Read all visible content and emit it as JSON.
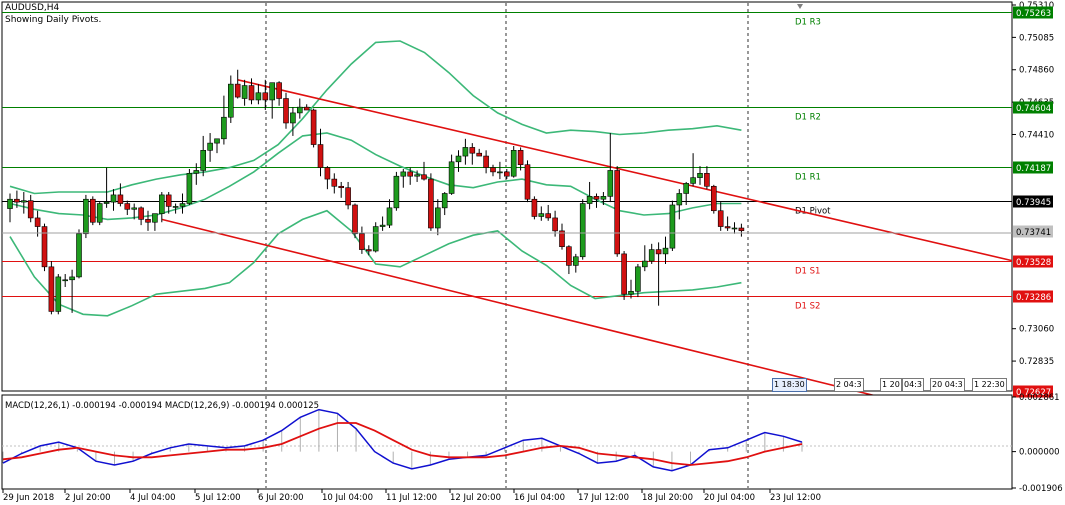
{
  "chart": {
    "symbol_timeframe": "AUDUSD,H4",
    "indicator_note": "Showing Daily Pivots.",
    "macd_label": "MACD(12,26,1) -0.000194 -0.000194 MACD(12,26,9) -0.000194 0.000125",
    "current_price": "0.73741",
    "colors": {
      "bull": "#1e9b1e",
      "bear": "#d01010",
      "bands": "#3cb878",
      "trend": "#e01010",
      "resistance": "#008000",
      "support": "#e01010",
      "macd_line": "#1010d0",
      "signal_line": "#e01010"
    }
  },
  "pivots": [
    {
      "label": "D1 R3",
      "price": "0.75263",
      "kind": "resistance"
    },
    {
      "label": "D1 R2",
      "price": "0.74604",
      "kind": "resistance"
    },
    {
      "label": "D1 R1",
      "price": "0.74187",
      "kind": "resistance"
    },
    {
      "label": "D1 Pivot",
      "price": "0.73945",
      "kind": "pivot"
    },
    {
      "label": "D1 S1",
      "price": "0.73528",
      "kind": "support"
    },
    {
      "label": "D1 S2",
      "price": "0.73286",
      "kind": "support"
    },
    {
      "label": "",
      "price": "0.72627",
      "kind": "support"
    }
  ],
  "price_axis": [
    "0.75310",
    "0.75085",
    "0.74860",
    "0.74635",
    "0.74410",
    "0.73060",
    "0.72835"
  ],
  "macd_axis": [
    "0.002861",
    "0.000000",
    "-0.001906"
  ],
  "time_axis": [
    "29 Jun 2018",
    "2 Jul 20:00",
    "4 Jul 04:00",
    "5 Jul 12:00",
    "6 Jul 20:00",
    "10 Jul 04:00",
    "11 Jul 12:00",
    "12 Jul 20:00",
    "16 Jul 04:00",
    "17 Jul 12:00",
    "18 Jul 20:00",
    "20 Jul 04:00",
    "23 Jul 12:00"
  ],
  "scroll_labels": [
    "1 18:30",
    "2 04:3",
    "1 20",
    "04:3",
    "20",
    "20 04:3",
    "1 22:30"
  ],
  "chart_data": {
    "type": "candlestick",
    "ylim": [
      0.72627,
      0.7531
    ],
    "candles": [
      [
        0.73895,
        0.74,
        0.738,
        0.7396
      ],
      [
        0.7396,
        0.7402,
        0.739,
        0.7394
      ],
      [
        0.7394,
        0.7401,
        0.7386,
        0.7395
      ],
      [
        0.7395,
        0.7399,
        0.738,
        0.7383
      ],
      [
        0.7383,
        0.7388,
        0.737,
        0.7377
      ],
      [
        0.7377,
        0.7379,
        0.7346,
        0.7349
      ],
      [
        0.7349,
        0.7353,
        0.7316,
        0.7318
      ],
      [
        0.7318,
        0.7344,
        0.7316,
        0.7342
      ],
      [
        0.734,
        0.7344,
        0.7335,
        0.734
      ],
      [
        0.734,
        0.7347,
        0.7317,
        0.7342
      ],
      [
        0.7342,
        0.7375,
        0.7341,
        0.7372
      ],
      [
        0.7372,
        0.7399,
        0.7369,
        0.7396
      ],
      [
        0.7396,
        0.7398,
        0.7378,
        0.738
      ],
      [
        0.738,
        0.7394,
        0.7378,
        0.7393
      ],
      [
        0.7393,
        0.7418,
        0.739,
        0.7394
      ],
      [
        0.7394,
        0.7403,
        0.7388,
        0.7399
      ],
      [
        0.7399,
        0.7407,
        0.7391,
        0.7393
      ],
      [
        0.7393,
        0.7395,
        0.7385,
        0.7389
      ],
      [
        0.7389,
        0.7393,
        0.7382,
        0.739
      ],
      [
        0.739,
        0.7391,
        0.7378,
        0.7382
      ],
      [
        0.7382,
        0.7388,
        0.7374,
        0.738
      ],
      [
        0.738,
        0.7385,
        0.7374,
        0.7386
      ],
      [
        0.7386,
        0.7401,
        0.738,
        0.7399
      ],
      [
        0.7399,
        0.7401,
        0.7386,
        0.7391
      ],
      [
        0.7391,
        0.7393,
        0.7386,
        0.7391
      ],
      [
        0.7391,
        0.74,
        0.7386,
        0.7393
      ],
      [
        0.7393,
        0.7417,
        0.7392,
        0.7414
      ],
      [
        0.7414,
        0.7421,
        0.7406,
        0.7416
      ],
      [
        0.7416,
        0.744,
        0.7412,
        0.743
      ],
      [
        0.743,
        0.7442,
        0.7422,
        0.7435
      ],
      [
        0.7435,
        0.7438,
        0.7428,
        0.7438
      ],
      [
        0.7438,
        0.7468,
        0.7434,
        0.7453
      ],
      [
        0.7453,
        0.7482,
        0.7449,
        0.7476
      ],
      [
        0.7476,
        0.7486,
        0.7466,
        0.7467
      ],
      [
        0.7466,
        0.7479,
        0.7461,
        0.7475
      ],
      [
        0.7475,
        0.748,
        0.7462,
        0.7465
      ],
      [
        0.7465,
        0.7476,
        0.7462,
        0.747
      ],
      [
        0.747,
        0.7479,
        0.7458,
        0.7465
      ],
      [
        0.7465,
        0.7477,
        0.7452,
        0.7477
      ],
      [
        0.7477,
        0.7478,
        0.7461,
        0.7466
      ],
      [
        0.7466,
        0.747,
        0.7445,
        0.7449
      ],
      [
        0.7449,
        0.746,
        0.744,
        0.7456
      ],
      [
        0.7456,
        0.7466,
        0.7452,
        0.746
      ],
      [
        0.746,
        0.7462,
        0.7458,
        0.7458
      ],
      [
        0.7458,
        0.7459,
        0.7432,
        0.7434
      ],
      [
        0.7434,
        0.7445,
        0.7412,
        0.7418
      ],
      [
        0.7418,
        0.7419,
        0.7403,
        0.741
      ],
      [
        0.741,
        0.7414,
        0.74,
        0.7405
      ],
      [
        0.7405,
        0.7408,
        0.7397,
        0.7404
      ],
      [
        0.7404,
        0.7408,
        0.7389,
        0.7392
      ],
      [
        0.7392,
        0.7393,
        0.7369,
        0.7372
      ],
      [
        0.7372,
        0.7377,
        0.7358,
        0.7361
      ],
      [
        0.7361,
        0.7364,
        0.7357,
        0.736
      ],
      [
        0.736,
        0.738,
        0.7359,
        0.7377
      ],
      [
        0.7377,
        0.7384,
        0.7374,
        0.7378
      ],
      [
        0.7378,
        0.7396,
        0.7376,
        0.739
      ],
      [
        0.739,
        0.7415,
        0.7388,
        0.7412
      ],
      [
        0.7412,
        0.7417,
        0.7404,
        0.7415
      ],
      [
        0.7415,
        0.7418,
        0.7406,
        0.7412
      ],
      [
        0.7412,
        0.7416,
        0.7408,
        0.7413
      ],
      [
        0.7413,
        0.7422,
        0.7409,
        0.741
      ],
      [
        0.741,
        0.7414,
        0.7374,
        0.7376
      ],
      [
        0.7376,
        0.7396,
        0.7371,
        0.739
      ],
      [
        0.739,
        0.7401,
        0.7385,
        0.74
      ],
      [
        0.74,
        0.7427,
        0.7399,
        0.7422
      ],
      [
        0.7422,
        0.743,
        0.7415,
        0.7426
      ],
      [
        0.7426,
        0.7438,
        0.742,
        0.7432
      ],
      [
        0.7432,
        0.7435,
        0.742,
        0.7428
      ],
      [
        0.7428,
        0.7431,
        0.7426,
        0.7426
      ],
      [
        0.7426,
        0.743,
        0.7414,
        0.7418
      ],
      [
        0.7418,
        0.742,
        0.7412,
        0.7415
      ],
      [
        0.7415,
        0.7422,
        0.741,
        0.7415
      ],
      [
        0.7415,
        0.7417,
        0.741,
        0.7412
      ],
      [
        0.7412,
        0.7433,
        0.7411,
        0.743
      ],
      [
        0.743,
        0.7432,
        0.7416,
        0.742
      ],
      [
        0.742,
        0.7423,
        0.7394,
        0.7396
      ],
      [
        0.7396,
        0.7398,
        0.7382,
        0.7384
      ],
      [
        0.7384,
        0.7391,
        0.7381,
        0.7386
      ],
      [
        0.7386,
        0.7392,
        0.7381,
        0.7383
      ],
      [
        0.7383,
        0.7388,
        0.737,
        0.7374
      ],
      [
        0.7374,
        0.7379,
        0.7361,
        0.7363
      ],
      [
        0.7363,
        0.7364,
        0.7344,
        0.735
      ],
      [
        0.735,
        0.7358,
        0.7345,
        0.7356
      ],
      [
        0.7356,
        0.7396,
        0.7354,
        0.7393
      ],
      [
        0.7393,
        0.7408,
        0.7389,
        0.7398
      ],
      [
        0.7398,
        0.74,
        0.739,
        0.7396
      ],
      [
        0.7396,
        0.7401,
        0.7392,
        0.7398
      ],
      [
        0.7398,
        0.7442,
        0.7394,
        0.7416
      ],
      [
        0.7416,
        0.7419,
        0.7356,
        0.7358
      ],
      [
        0.7358,
        0.736,
        0.7326,
        0.733
      ],
      [
        0.733,
        0.734,
        0.7327,
        0.7332
      ],
      [
        0.7332,
        0.7351,
        0.7328,
        0.7349
      ],
      [
        0.7349,
        0.7364,
        0.7346,
        0.7353
      ],
      [
        0.7353,
        0.7365,
        0.7351,
        0.7361
      ],
      [
        0.7361,
        0.7366,
        0.7322,
        0.7358
      ],
      [
        0.7358,
        0.737,
        0.7351,
        0.7362
      ],
      [
        0.7362,
        0.7395,
        0.736,
        0.7392
      ],
      [
        0.7392,
        0.7403,
        0.7382,
        0.74
      ],
      [
        0.74,
        0.7408,
        0.7392,
        0.7407
      ],
      [
        0.7407,
        0.7428,
        0.7405,
        0.7411
      ],
      [
        0.7411,
        0.7419,
        0.7406,
        0.7414
      ],
      [
        0.7414,
        0.7419,
        0.7403,
        0.7405
      ],
      [
        0.7405,
        0.7406,
        0.7386,
        0.7388
      ],
      [
        0.7388,
        0.7394,
        0.7374,
        0.7377
      ],
      [
        0.7377,
        0.7384,
        0.7374,
        0.7376
      ],
      [
        0.7376,
        0.738,
        0.7372,
        0.7376
      ],
      [
        0.7376,
        0.7379,
        0.737,
        0.73741
      ]
    ],
    "bollinger": {
      "upper": [
        0.7405,
        0.74,
        0.7401,
        0.7401,
        0.7401,
        0.7406,
        0.741,
        0.7413,
        0.7415,
        0.7418,
        0.7423,
        0.7434,
        0.7452,
        0.7472,
        0.749,
        0.7505,
        0.7506,
        0.7498,
        0.7484,
        0.7468,
        0.7456,
        0.7448,
        0.7442,
        0.7444,
        0.7443,
        0.7441,
        0.7442,
        0.7444,
        0.7445,
        0.7447,
        0.7444
      ],
      "middle": [
        0.7393,
        0.7389,
        0.7386,
        0.7385,
        0.7382,
        0.7383,
        0.7385,
        0.739,
        0.7396,
        0.7405,
        0.7415,
        0.7428,
        0.744,
        0.7442,
        0.7437,
        0.7427,
        0.7419,
        0.7412,
        0.7406,
        0.7404,
        0.7408,
        0.741,
        0.7406,
        0.7405,
        0.7396,
        0.7388,
        0.7385,
        0.7386,
        0.739,
        0.7393,
        0.7393
      ],
      "lower": [
        0.737,
        0.7342,
        0.7323,
        0.7316,
        0.7315,
        0.7322,
        0.733,
        0.7332,
        0.7334,
        0.7338,
        0.7352,
        0.7372,
        0.7382,
        0.7388,
        0.7374,
        0.7351,
        0.7349,
        0.7357,
        0.7365,
        0.7371,
        0.7374,
        0.736,
        0.735,
        0.7336,
        0.7327,
        0.7329,
        0.7331,
        0.7332,
        0.7333,
        0.7335,
        0.7338
      ]
    },
    "trendlines": [
      {
        "from": [
          33,
          0.7479
        ],
        "to": [
          108,
          0.7395
        ]
      },
      {
        "from": [
          22,
          0.7382
        ],
        "to": [
          108,
          0.728
        ]
      }
    ],
    "macd": {
      "ylim": [
        -0.001906,
        0.002861
      ],
      "line": [
        -0.0006,
        -0.0001,
        0.0003,
        0.0005,
        0.0002,
        -0.0005,
        -0.0007,
        -0.0005,
        -0.0001,
        0.0002,
        0.0004,
        0.0003,
        0.0002,
        0.0003,
        0.0006,
        0.0011,
        0.0018,
        0.0022,
        0.002,
        0.0012,
        0.0,
        -0.0006,
        -0.0009,
        -0.0007,
        -0.0004,
        -0.0003,
        -0.0002,
        0.0002,
        0.0006,
        0.0007,
        0.0003,
        -0.0001,
        -0.0006,
        -0.0005,
        -0.0002,
        -0.0008,
        -0.001,
        -0.0007,
        0.0001,
        0.0002,
        0.0006,
        0.001,
        0.0008,
        0.0005
      ],
      "signal": [
        -0.0004,
        -0.0003,
        -0.0001,
        0.0001,
        0.0002,
        0.0,
        -0.0002,
        -0.0003,
        -0.0003,
        -0.0002,
        -0.0001,
        0.0,
        0.0001,
        0.0001,
        0.0002,
        0.0004,
        0.0008,
        0.0012,
        0.0015,
        0.0015,
        0.0011,
        0.0006,
        0.0001,
        -0.0002,
        -0.0003,
        -0.0003,
        -0.0003,
        -0.0002,
        0.0,
        0.0002,
        0.0003,
        0.0002,
        -0.0001,
        -0.0002,
        -0.0003,
        -0.0004,
        -0.0006,
        -0.0007,
        -0.0006,
        -0.0005,
        -0.0003,
        0.0,
        0.0002,
        0.0004
      ]
    }
  }
}
